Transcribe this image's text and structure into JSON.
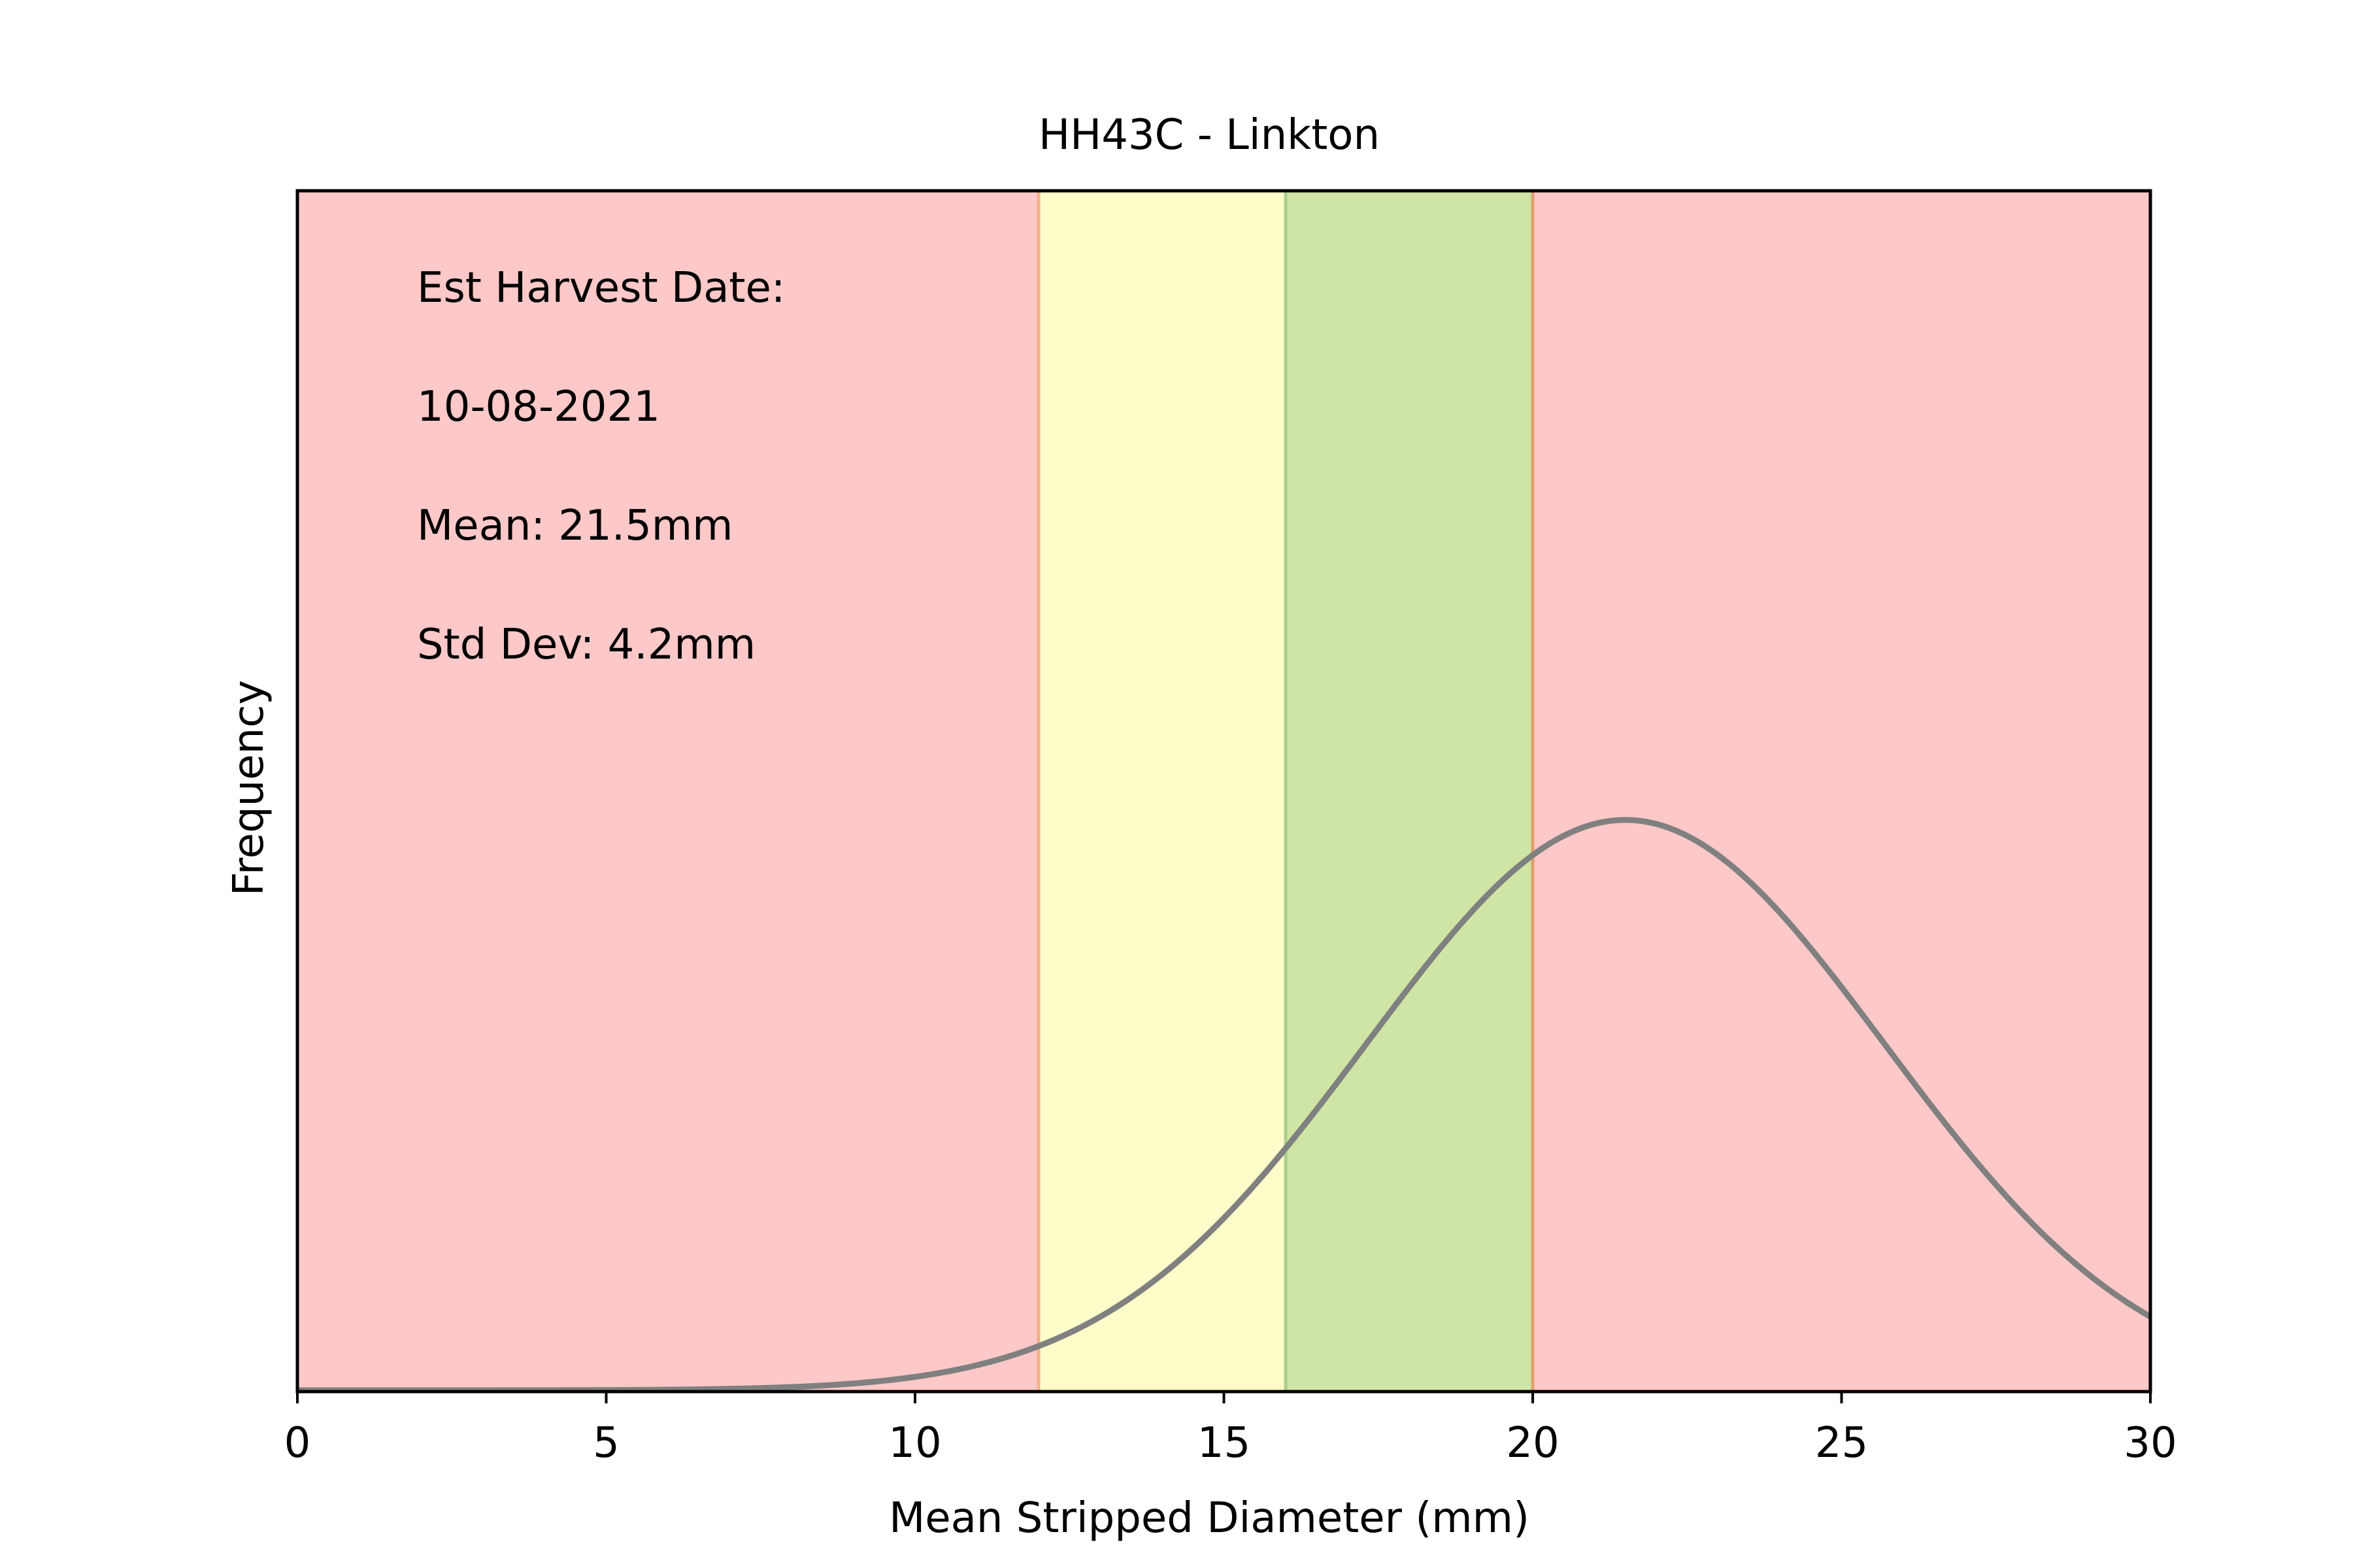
{
  "chart_data": {
    "type": "line",
    "title": "HH43C - Linkton",
    "xlabel": "Mean Stripped Diameter (mm)",
    "ylabel": "Frequency",
    "xlim": [
      0,
      30
    ],
    "xticks": [
      0,
      5,
      10,
      15,
      20,
      25,
      30
    ],
    "yticks_shown": false,
    "grid": false,
    "distribution": {
      "kind": "normal",
      "mean": 21.5,
      "std": 4.2
    },
    "curve_color": "#808080",
    "bands": [
      {
        "from": 0,
        "to": 12,
        "color": "#fcc8c8"
      },
      {
        "from": 12,
        "to": 16,
        "color": "#fefcc8"
      },
      {
        "from": 16,
        "to": 20,
        "color": "#cfe5a5"
      },
      {
        "from": 20,
        "to": 30,
        "color": "#fcc8c8"
      }
    ],
    "band_edges": [
      {
        "x": 12,
        "color": "#f5b08a"
      },
      {
        "x": 16,
        "color": "#a9d08a"
      },
      {
        "x": 20,
        "color": "#e0a070"
      }
    ],
    "annotations": [
      "Est Harvest Date:",
      "10-08-2021",
      "Mean: 21.5mm",
      "Std Dev: 4.2mm"
    ]
  }
}
